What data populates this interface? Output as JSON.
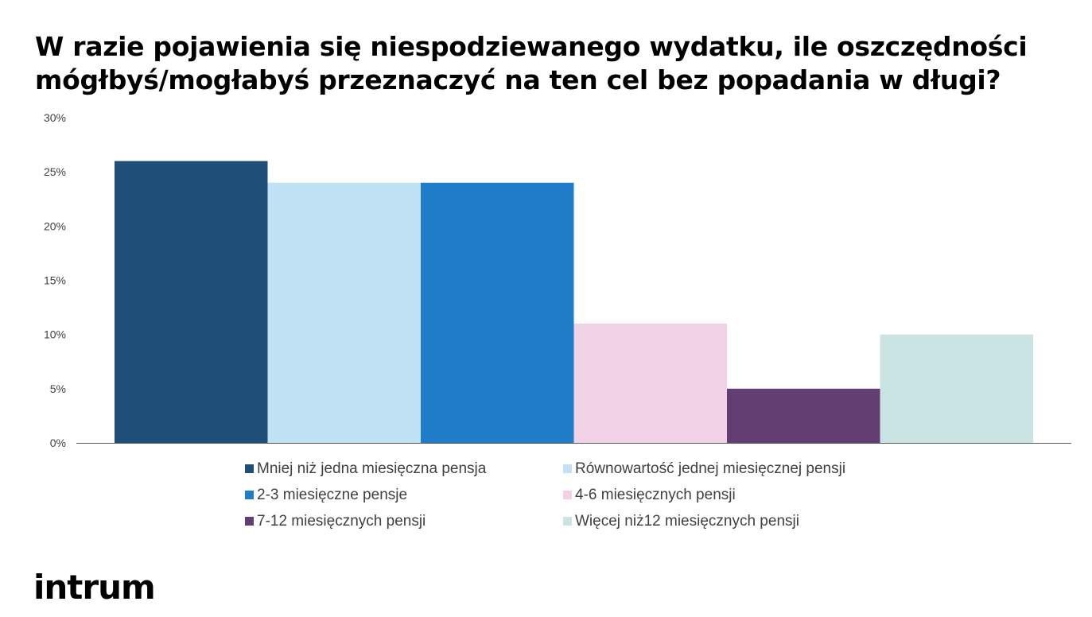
{
  "chart_data": {
    "type": "bar",
    "title_lines": [
      "W razie pojawienia się niespodziewanego wydatku, ile oszczędności",
      "mógłbyś/mogłabyś przeznaczyć na ten cel bez popadania w długi?"
    ],
    "categories": [
      "Mniej niż jedna miesięczna pensja",
      "Równowartość jednej miesięcznej pensji",
      "2-3 miesięczne pensje",
      "4-6 miesięcznych pensji",
      "7-12 miesięcznych pensji",
      "Więcej niż12 miesięcznych pensji"
    ],
    "values": [
      26,
      24,
      24,
      11,
      5,
      10
    ],
    "colors": [
      "#1f4e79",
      "#c1e2f5",
      "#1f7cc9",
      "#f0d1e5",
      "#633e73",
      "#cae3e3"
    ],
    "yticks": [
      0,
      5,
      10,
      15,
      20,
      25,
      30
    ],
    "ytick_labels": [
      "0%",
      "5%",
      "10%",
      "15%",
      "20%",
      "25%",
      "30%"
    ],
    "ylim": [
      0,
      30
    ],
    "grid": false,
    "legend_position": "bottom"
  },
  "logo_text": "intrum"
}
